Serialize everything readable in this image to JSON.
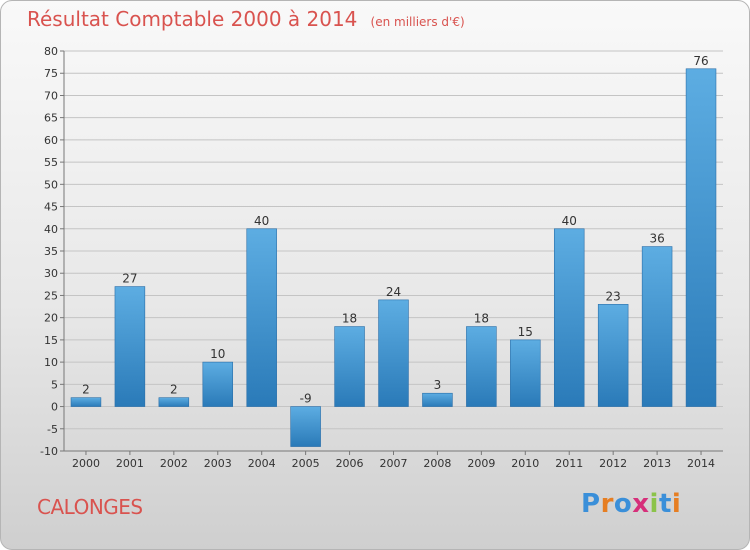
{
  "header": {
    "title": "Résultat Comptable 2000 à 2014",
    "subtitle": "(en milliers d'€)"
  },
  "footer": {
    "commune": "CALONGES",
    "logo_text": "Proxiti"
  },
  "colors": {
    "title": "#d9534f",
    "bar_light": "#5dade2",
    "bar_dark": "#2a7ab8",
    "logo_letters": [
      "#3a8fd9",
      "#e67e22",
      "#3a8fd9",
      "#d62f7a",
      "#8bc34a",
      "#3a8fd9",
      "#e67e22"
    ]
  },
  "chart_data": {
    "type": "bar",
    "categories": [
      "2000",
      "2001",
      "2002",
      "2003",
      "2004",
      "2005",
      "2006",
      "2007",
      "2008",
      "2009",
      "2010",
      "2011",
      "2012",
      "2013",
      "2014"
    ],
    "values": [
      2,
      27,
      2,
      10,
      40,
      -9,
      18,
      24,
      3,
      18,
      15,
      40,
      23,
      36,
      76
    ],
    "data_labels": [
      "2",
      "27",
      "2",
      "10",
      "40",
      "-9",
      "18",
      "24",
      "3",
      "18",
      "15",
      "40",
      "23",
      "36",
      "76"
    ],
    "yticks": [
      -10,
      -5,
      0,
      5,
      10,
      15,
      20,
      25,
      30,
      35,
      40,
      45,
      50,
      55,
      60,
      65,
      70,
      75,
      80
    ],
    "ylim": [
      -10,
      80
    ],
    "grid": "horizontal",
    "xlabel": "",
    "ylabel": ""
  }
}
